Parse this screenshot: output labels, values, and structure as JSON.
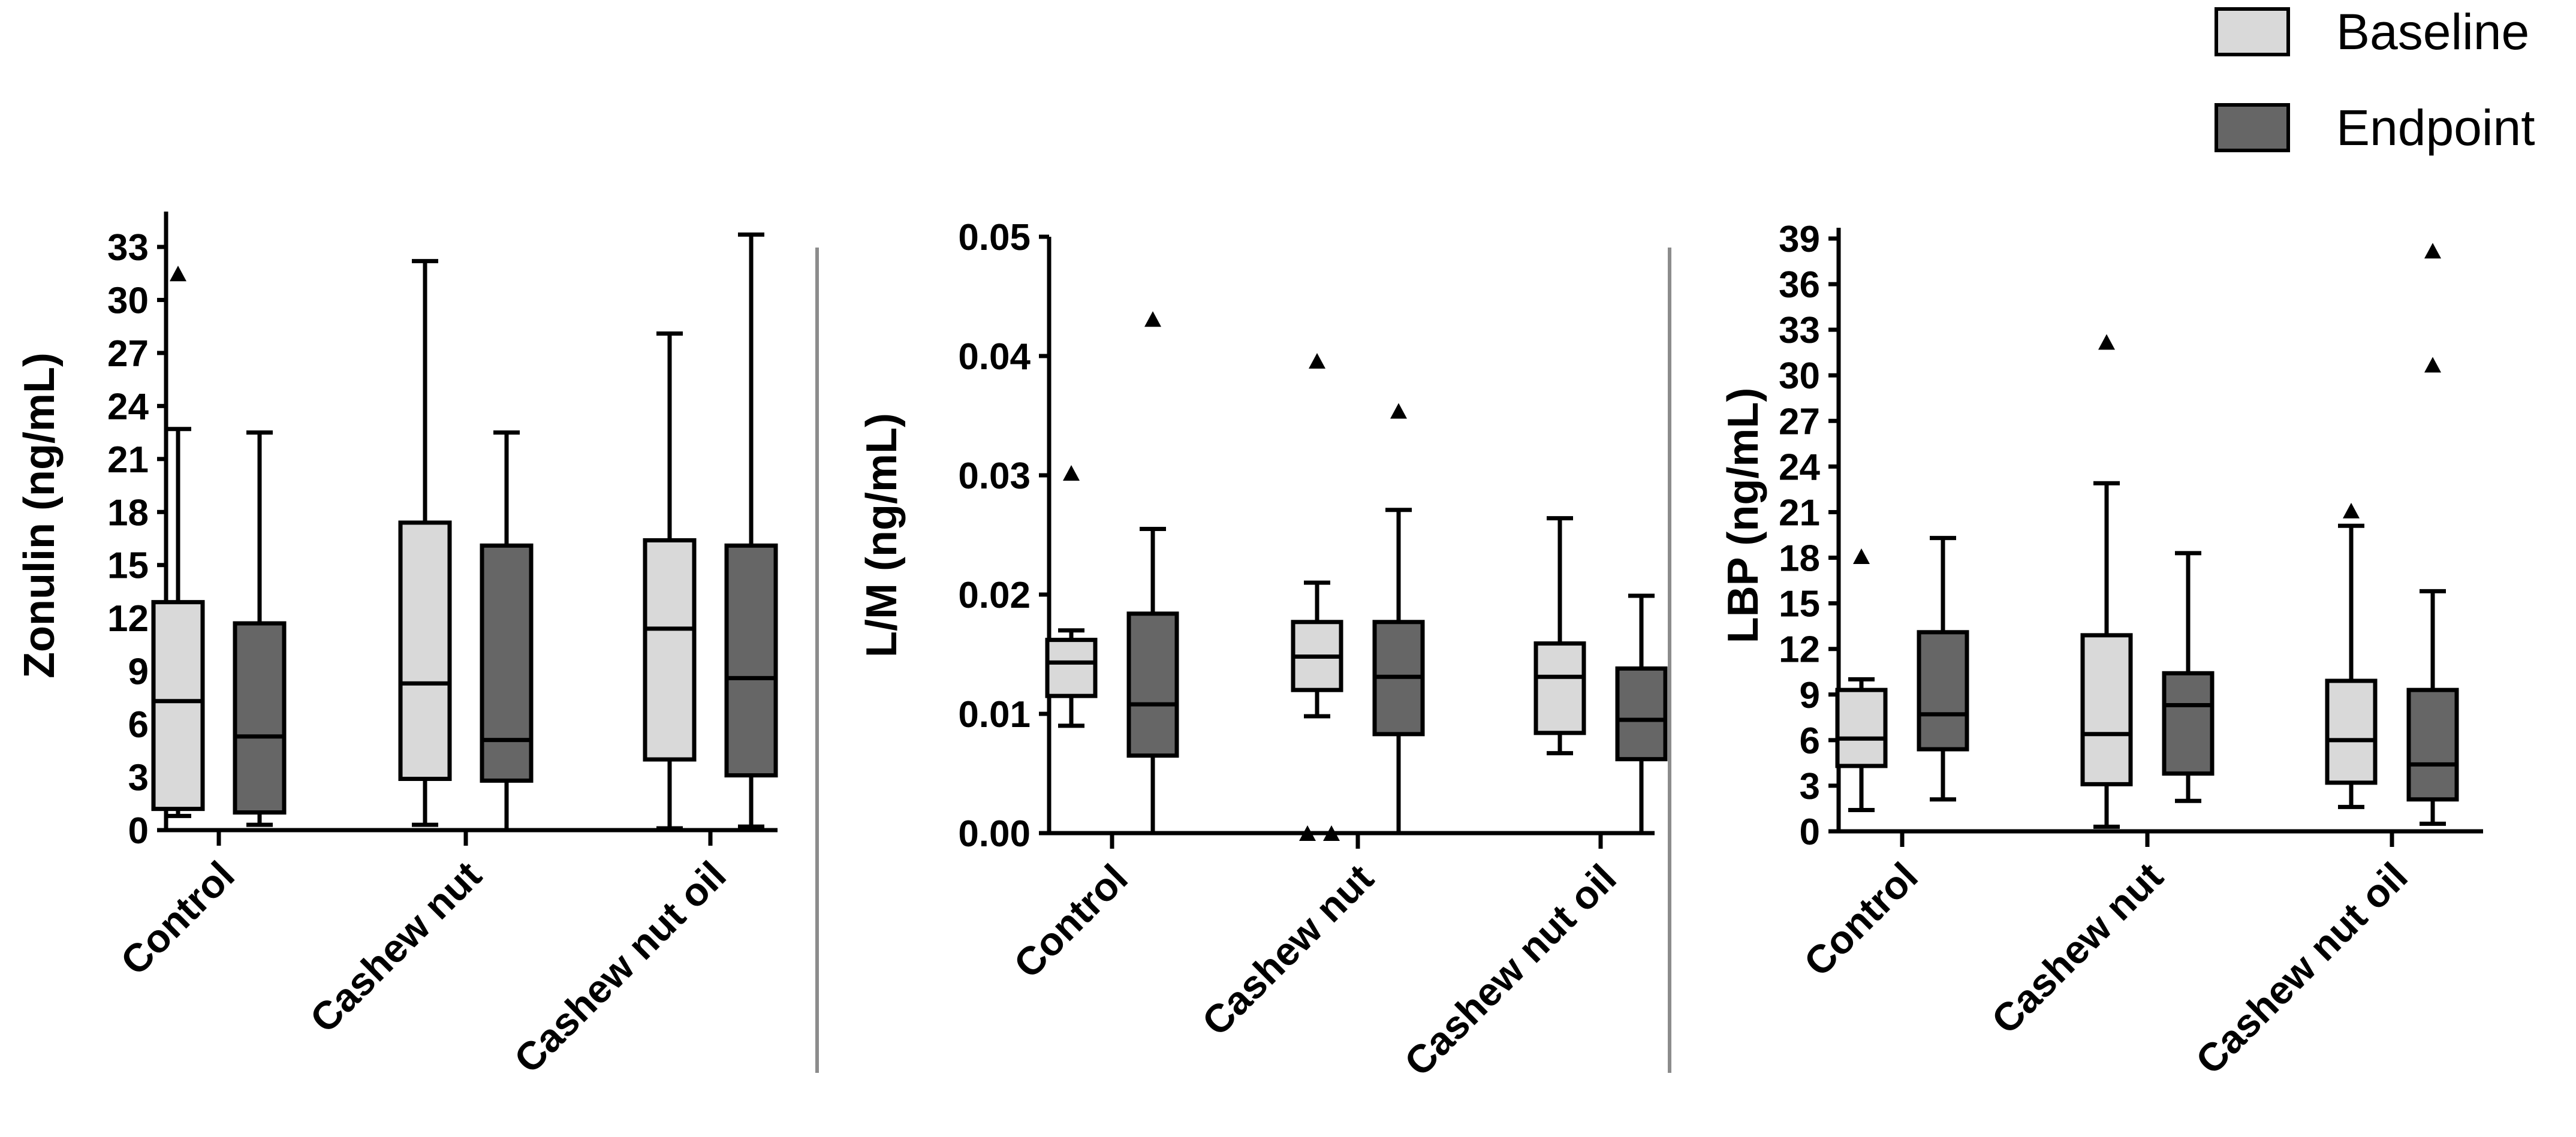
{
  "chart_data": [
    {
      "type": "boxplot",
      "ylabel": "Zonulin (ng/mL)",
      "ylim": [
        0,
        35
      ],
      "yticks": [
        0,
        3,
        6,
        9,
        12,
        15,
        18,
        21,
        24,
        27,
        30,
        33
      ],
      "tick_labels": [
        "0",
        "3",
        "6",
        "9",
        "12",
        "15",
        "18",
        "21",
        "24",
        "27",
        "30",
        "33"
      ],
      "categories": [
        "Control",
        "Cashew nut",
        "Cashew nut oil"
      ],
      "series": [
        {
          "name": "Baseline",
          "boxes": [
            {
              "whisker_low": 0.8,
              "q1": 1.2,
              "median": 7.3,
              "q3": 12.9,
              "whisker_high": 22.7,
              "outliers": [
                31.5
              ]
            },
            {
              "whisker_low": 0.3,
              "q1": 2.9,
              "median": 8.3,
              "q3": 17.4,
              "whisker_high": 32.2,
              "outliers": []
            },
            {
              "whisker_low": 0.1,
              "q1": 4.0,
              "median": 11.4,
              "q3": 16.4,
              "whisker_high": 28.1,
              "outliers": []
            }
          ]
        },
        {
          "name": "Endpoint",
          "boxes": [
            {
              "whisker_low": 0.3,
              "q1": 1.0,
              "median": 5.3,
              "q3": 11.7,
              "whisker_high": 22.5,
              "outliers": []
            },
            {
              "whisker_low": 0.0,
              "q1": 2.8,
              "median": 5.1,
              "q3": 16.1,
              "whisker_high": 22.5,
              "outliers": []
            },
            {
              "whisker_low": 0.2,
              "q1": 3.1,
              "median": 8.6,
              "q3": 16.1,
              "whisker_high": 33.7,
              "outliers": []
            }
          ]
        }
      ]
    },
    {
      "type": "boxplot",
      "ylabel": "L/M (ng/mL)",
      "ylim": [
        0,
        0.05
      ],
      "yticks": [
        0,
        0.01,
        0.02,
        0.03,
        0.04,
        0.05
      ],
      "tick_labels": [
        "0.00",
        "0.01",
        "0.02",
        "0.03",
        "0.04",
        "0.05"
      ],
      "categories": [
        "Control",
        "Cashew nut",
        "Cashew nut oil"
      ],
      "series": [
        {
          "name": "Baseline",
          "boxes": [
            {
              "whisker_low": 0.009,
              "q1": 0.0115,
              "median": 0.0143,
              "q3": 0.0162,
              "whisker_high": 0.017,
              "outliers": [
                0.0302
              ]
            },
            {
              "whisker_low": 0.0098,
              "q1": 0.012,
              "median": 0.0148,
              "q3": 0.0177,
              "whisker_high": 0.021,
              "outliers": [
                0.0396,
                0.0,
                0.0
              ]
            },
            {
              "whisker_low": 0.0067,
              "q1": 0.0084,
              "median": 0.0131,
              "q3": 0.0159,
              "whisker_high": 0.0264,
              "outliers": []
            }
          ]
        },
        {
          "name": "Endpoint",
          "boxes": [
            {
              "whisker_low": 0.0,
              "q1": 0.0065,
              "median": 0.0108,
              "q3": 0.0184,
              "whisker_high": 0.0255,
              "outliers": [
                0.0431
              ]
            },
            {
              "whisker_low": 0.0,
              "q1": 0.0083,
              "median": 0.0131,
              "q3": 0.0177,
              "whisker_high": 0.0271,
              "outliers": [
                0.0354
              ]
            },
            {
              "whisker_low": 0.0,
              "q1": 0.0062,
              "median": 0.0095,
              "q3": 0.0138,
              "whisker_high": 0.0199,
              "outliers": []
            }
          ]
        }
      ]
    },
    {
      "type": "boxplot",
      "ylabel": "LBP (ng/mL)",
      "ylim": [
        0,
        39
      ],
      "yticks": [
        0,
        3,
        6,
        9,
        12,
        15,
        18,
        21,
        24,
        27,
        30,
        33,
        36,
        39
      ],
      "tick_labels": [
        "0",
        "3",
        "6",
        "9",
        "12",
        "15",
        "18",
        "21",
        "24",
        "27",
        "30",
        "33",
        "36",
        "39"
      ],
      "categories": [
        "Control",
        "Cashew nut",
        "Cashew nut oil"
      ],
      "series": [
        {
          "name": "Baseline",
          "boxes": [
            {
              "whisker_low": 1.4,
              "q1": 4.3,
              "median": 6.1,
              "q3": 9.3,
              "whisker_high": 10.0,
              "outliers": [
                18.1
              ]
            },
            {
              "whisker_low": 0.3,
              "q1": 3.1,
              "median": 6.4,
              "q3": 12.9,
              "whisker_high": 22.9,
              "outliers": [
                32.2
              ]
            },
            {
              "whisker_low": 1.6,
              "q1": 3.2,
              "median": 6.0,
              "q3": 9.9,
              "whisker_high": 20.1,
              "outliers": [
                21.1
              ]
            }
          ]
        },
        {
          "name": "Endpoint",
          "boxes": [
            {
              "whisker_low": 2.1,
              "q1": 5.4,
              "median": 7.7,
              "q3": 13.1,
              "whisker_high": 19.3,
              "outliers": []
            },
            {
              "whisker_low": 2.0,
              "q1": 3.8,
              "median": 8.3,
              "q3": 10.4,
              "whisker_high": 18.3,
              "outliers": []
            },
            {
              "whisker_low": 0.5,
              "q1": 2.1,
              "median": 4.4,
              "q3": 9.3,
              "whisker_high": 15.8,
              "outliers": [
                30.7,
                38.2
              ]
            }
          ]
        }
      ]
    }
  ],
  "legend": {
    "entries": [
      {
        "label": "Baseline",
        "color": "#d9d9d9"
      },
      {
        "label": "Endpoint",
        "color": "#666666"
      }
    ]
  },
  "colors": {
    "baseline": "#d9d9d9",
    "endpoint": "#666666",
    "stroke": "#000000",
    "divider": "#8c8c8c"
  }
}
